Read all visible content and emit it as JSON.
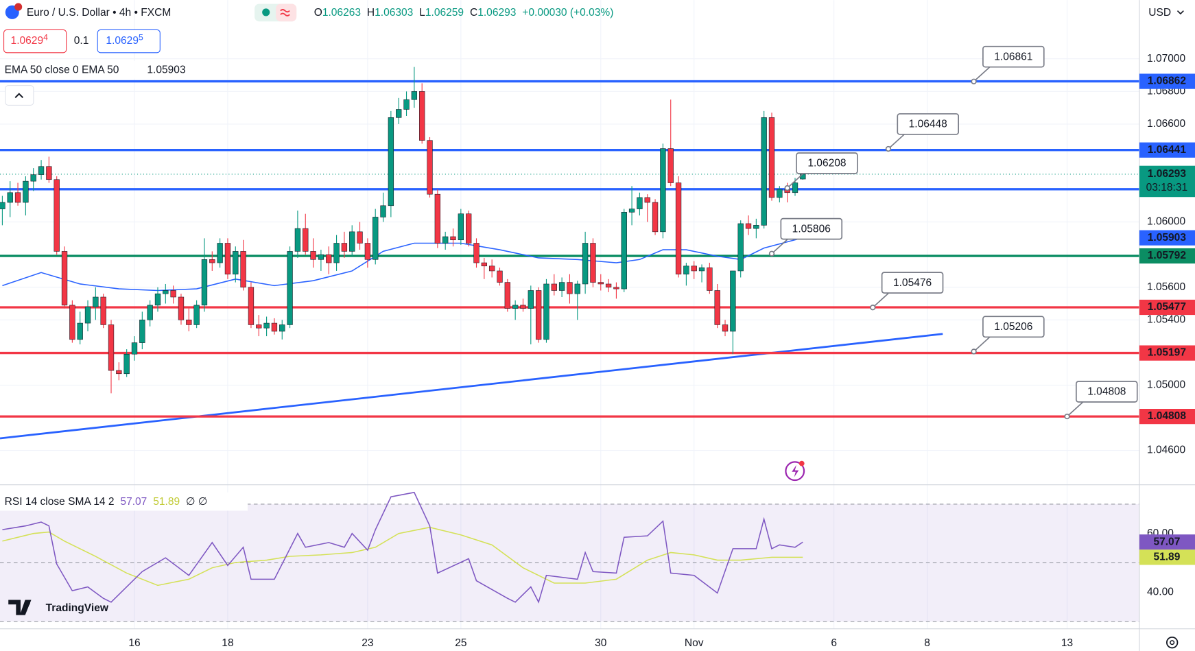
{
  "chart_data": [
    {
      "type": "candlestick",
      "title": "Euro / U.S. Dollar • 4h • FXCM",
      "ohlc_keys": [
        "O",
        "H",
        "L",
        "C"
      ],
      "change": "+0.00030 (+0.03%)",
      "quote": {
        "sell": {
          "price": "1.0629",
          "pip": "4"
        },
        "spread": "0.1",
        "buy": {
          "price": "1.0629",
          "pip": "5"
        }
      },
      "currency": "USD",
      "x": [
        0,
        1,
        2,
        3,
        4,
        5,
        6,
        7,
        8,
        9,
        10,
        11,
        12,
        13,
        14,
        15,
        16,
        17,
        18,
        19,
        20,
        21,
        22,
        23,
        24,
        25,
        26,
        27,
        28,
        29,
        30,
        31,
        32,
        33,
        34,
        35,
        36,
        37,
        38,
        39,
        40,
        41,
        42,
        43,
        44,
        45,
        46,
        47,
        48,
        49,
        50,
        51,
        52,
        53,
        54,
        55,
        56,
        57,
        58,
        59,
        60,
        61,
        62,
        63,
        64,
        65,
        66,
        67,
        68,
        69,
        70,
        71,
        72,
        73,
        74,
        75,
        76,
        77,
        78,
        79,
        80,
        81,
        82,
        83,
        84,
        85,
        86,
        87,
        88,
        89,
        90,
        91,
        92,
        93,
        94,
        95,
        96,
        97,
        98,
        99,
        100,
        101,
        102,
        103
      ],
      "ohlc": [
        [
          1.0608,
          1.0616,
          1.0598,
          1.0612
        ],
        [
          1.0612,
          1.0625,
          1.0603,
          1.0618
        ],
        [
          1.0618,
          1.0624,
          1.061,
          1.0612
        ],
        [
          1.0612,
          1.0628,
          1.0604,
          1.0625
        ],
        [
          1.0625,
          1.0633,
          1.0619,
          1.0629
        ],
        [
          1.0629,
          1.0638,
          1.0626,
          1.0634
        ],
        [
          1.0634,
          1.064,
          1.0624,
          1.0626
        ],
        [
          1.0626,
          1.0628,
          1.058,
          1.0582
        ],
        [
          1.0582,
          1.0585,
          1.0547,
          1.0549
        ],
        [
          1.0549,
          1.0552,
          1.0526,
          1.0528
        ],
        [
          1.0528,
          1.0545,
          1.0525,
          1.0538
        ],
        [
          1.0538,
          1.0552,
          1.0533,
          1.0548
        ],
        [
          1.0548,
          1.056,
          1.054,
          1.0554
        ],
        [
          1.0554,
          1.0556,
          1.0535,
          1.0537
        ],
        [
          1.0537,
          1.054,
          1.0495,
          1.0509
        ],
        [
          1.0509,
          1.0514,
          1.0503,
          1.0507
        ],
        [
          1.0507,
          1.0522,
          1.0505,
          1.0519
        ],
        [
          1.0519,
          1.053,
          1.0515,
          1.0526
        ],
        [
          1.0526,
          1.0545,
          1.0522,
          1.054
        ],
        [
          1.054,
          1.0552,
          1.0536,
          1.0549
        ],
        [
          1.0549,
          1.056,
          1.0545,
          1.0556
        ],
        [
          1.0556,
          1.0562,
          1.055,
          1.0558
        ],
        [
          1.0558,
          1.0561,
          1.055,
          1.0554
        ],
        [
          1.0554,
          1.0556,
          1.0537,
          1.054
        ],
        [
          1.054,
          1.0547,
          1.0533,
          1.0537
        ],
        [
          1.0537,
          1.0552,
          1.0535,
          1.0549
        ],
        [
          1.0549,
          1.059,
          1.0545,
          1.0577
        ],
        [
          1.0577,
          1.0582,
          1.057,
          1.0575
        ],
        [
          1.0575,
          1.059,
          1.0572,
          1.0587
        ],
        [
          1.0587,
          1.059,
          1.0565,
          1.0568
        ],
        [
          1.0568,
          1.0585,
          1.0563,
          1.0582
        ],
        [
          1.0582,
          1.0589,
          1.0558,
          1.056
        ],
        [
          1.056,
          1.0563,
          1.0535,
          1.0537
        ],
        [
          1.0537,
          1.0543,
          1.053,
          1.0535
        ],
        [
          1.0535,
          1.0542,
          1.053,
          1.0538
        ],
        [
          1.0538,
          1.0541,
          1.0531,
          1.0533
        ],
        [
          1.0533,
          1.054,
          1.0528,
          1.0537
        ],
        [
          1.0537,
          1.0585,
          1.0535,
          1.0582
        ],
        [
          1.0582,
          1.0607,
          1.0578,
          1.0596
        ],
        [
          1.0596,
          1.0605,
          1.058,
          1.0582
        ],
        [
          1.0582,
          1.059,
          1.0572,
          1.0577
        ],
        [
          1.0577,
          1.0583,
          1.057,
          1.058
        ],
        [
          1.058,
          1.0585,
          1.0568,
          1.0575
        ],
        [
          1.0575,
          1.0592,
          1.057,
          1.0587
        ],
        [
          1.0587,
          1.0594,
          1.0578,
          1.0582
        ],
        [
          1.0582,
          1.0598,
          1.0579,
          1.0594
        ],
        [
          1.0594,
          1.06,
          1.0583,
          1.0587
        ],
        [
          1.0587,
          1.059,
          1.0572,
          1.0577
        ],
        [
          1.0577,
          1.0608,
          1.0574,
          1.0603
        ],
        [
          1.0603,
          1.0618,
          1.06,
          1.061
        ],
        [
          1.061,
          1.0668,
          1.0603,
          1.0664
        ],
        [
          1.0664,
          1.0676,
          1.066,
          1.0669
        ],
        [
          1.0669,
          1.068,
          1.0665,
          1.0675
        ],
        [
          1.0675,
          1.0695,
          1.067,
          1.068
        ],
        [
          1.068,
          1.0685,
          1.0648,
          1.065
        ],
        [
          1.065,
          1.0652,
          1.0615,
          1.0617
        ],
        [
          1.0617,
          1.062,
          1.0584,
          1.0587
        ],
        [
          1.0587,
          1.0594,
          1.0583,
          1.0591
        ],
        [
          1.0591,
          1.0596,
          1.0585,
          1.0589
        ],
        [
          1.0589,
          1.0608,
          1.0586,
          1.0605
        ],
        [
          1.0605,
          1.0607,
          1.0585,
          1.0587
        ],
        [
          1.0587,
          1.059,
          1.0572,
          1.0575
        ],
        [
          1.0575,
          1.0578,
          1.0565,
          1.0573
        ],
        [
          1.0573,
          1.0577,
          1.0566,
          1.057
        ],
        [
          1.057,
          1.0572,
          1.0561,
          1.0563
        ],
        [
          1.0563,
          1.0565,
          1.0545,
          1.0547
        ],
        [
          1.0547,
          1.0552,
          1.054,
          1.0549
        ],
        [
          1.0549,
          1.0553,
          1.0545,
          1.0547
        ],
        [
          1.0547,
          1.0561,
          1.0525,
          1.0558
        ],
        [
          1.0558,
          1.056,
          1.0526,
          1.0528
        ],
        [
          1.0528,
          1.0565,
          1.0526,
          1.0562
        ],
        [
          1.0562,
          1.0568,
          1.0555,
          1.0558
        ],
        [
          1.0558,
          1.0566,
          1.0554,
          1.0563
        ],
        [
          1.0563,
          1.0568,
          1.055,
          1.0556
        ],
        [
          1.0556,
          1.0564,
          1.054,
          1.0562
        ],
        [
          1.0562,
          1.0594,
          1.0556,
          1.0587
        ],
        [
          1.0587,
          1.059,
          1.056,
          1.0563
        ],
        [
          1.0563,
          1.0568,
          1.0558,
          1.0562
        ],
        [
          1.0562,
          1.0565,
          1.0557,
          1.056
        ],
        [
          1.056,
          1.0563,
          1.0553,
          1.0559
        ],
        [
          1.0559,
          1.0608,
          1.0557,
          1.0606
        ],
        [
          1.0606,
          1.0622,
          1.0598,
          1.0608
        ],
        [
          1.0608,
          1.0618,
          1.0604,
          1.0615
        ],
        [
          1.0615,
          1.0617,
          1.06,
          1.0612
        ],
        [
          1.0612,
          1.0614,
          1.0592,
          1.0594
        ],
        [
          1.0594,
          1.0648,
          1.059,
          1.0645
        ],
        [
          1.0645,
          1.0675,
          1.0622,
          1.0624
        ],
        [
          1.0624,
          1.0628,
          1.0566,
          1.0568
        ],
        [
          1.0568,
          1.0575,
          1.0561,
          1.0573
        ],
        [
          1.0573,
          1.0576,
          1.0565,
          1.057
        ],
        [
          1.057,
          1.0574,
          1.0563,
          1.0572
        ],
        [
          1.0572,
          1.0575,
          1.0556,
          1.0558
        ],
        [
          1.0558,
          1.0562,
          1.0535,
          1.0537
        ],
        [
          1.0537,
          1.054,
          1.053,
          1.0533
        ],
        [
          1.0533,
          1.057,
          1.0519,
          1.057
        ],
        [
          1.057,
          1.0601,
          1.0566,
          1.0599
        ],
        [
          1.0599,
          1.0604,
          1.0592,
          1.0596
        ],
        [
          1.0596,
          1.0602,
          1.059,
          1.0598
        ],
        [
          1.0598,
          1.0668,
          1.0596,
          1.0664
        ],
        [
          1.0664,
          1.0667,
          1.0613,
          1.0615
        ],
        [
          1.0615,
          1.0622,
          1.0612,
          1.062
        ],
        [
          1.062,
          1.0624,
          1.0612,
          1.0618
        ],
        [
          1.0618,
          1.0627,
          1.0616,
          1.0624
        ],
        [
          1.06263,
          1.06303,
          1.06259,
          1.06293
        ]
      ],
      "up_color": "#089981",
      "down_color": "#f23645",
      "xlim": [
        -0.3,
        146.3
      ],
      "xticks": [
        {
          "value": 17,
          "label": "16"
        },
        {
          "value": 29,
          "label": "18"
        },
        {
          "value": 47,
          "label": "23"
        },
        {
          "value": 59,
          "label": "25"
        },
        {
          "value": 77,
          "label": "30"
        },
        {
          "value": 89,
          "label": "Nov"
        },
        {
          "value": 107,
          "label": "6"
        },
        {
          "value": 119,
          "label": "8"
        },
        {
          "value": 137,
          "label": "13"
        }
      ],
      "ylim": [
        1.04394,
        1.0736
      ],
      "yticks": [
        {
          "value": 1.07,
          "label": "1.07000"
        },
        {
          "value": 1.068,
          "label": "1.06800"
        },
        {
          "value": 1.066,
          "label": "1.06600"
        },
        {
          "value": 1.06,
          "label": "1.06000"
        },
        {
          "value": 1.056,
          "label": "1.05600"
        },
        {
          "value": 1.054,
          "label": "1.05400"
        },
        {
          "value": 1.05,
          "label": "1.05000"
        },
        {
          "value": 1.046,
          "label": "1.04600"
        }
      ],
      "grid": true,
      "ema": {
        "name": "EMA 50 close 0 EMA 50",
        "color": "#2962ff",
        "x": [
          0,
          5,
          10,
          15,
          20,
          25,
          30,
          35,
          40,
          45,
          49,
          53,
          55,
          59,
          64,
          69,
          74,
          79,
          82,
          85,
          88,
          92,
          95,
          98,
          103
        ],
        "values": [
          1.0561,
          1.0569,
          1.0562,
          1.0559,
          1.0558,
          1.0559,
          1.0565,
          1.0561,
          1.0564,
          1.057,
          1.0582,
          1.0587,
          1.0587,
          1.0587,
          1.0583,
          1.0578,
          1.0577,
          1.0575,
          1.0577,
          1.0583,
          1.0583,
          1.0579,
          1.0577,
          1.0584,
          1.05903
        ]
      },
      "trend_line": {
        "color": "#2962ff",
        "x": [
          -0.3,
          121
        ],
        "values": [
          1.04674,
          1.05314
        ]
      },
      "levels": [
        {
          "value": 1.06862,
          "color": "#2962ff"
        },
        {
          "value": 1.06441,
          "color": "#2962ff"
        },
        {
          "value": 1.06201,
          "color": "#2962ff"
        },
        {
          "value": 1.05792,
          "color": "#0b8d63"
        },
        {
          "value": 1.05477,
          "color": "#f23645"
        },
        {
          "value": 1.05197,
          "color": "#f23645"
        },
        {
          "value": 1.04808,
          "color": "#f23645"
        }
      ],
      "notes": [
        {
          "x": 125,
          "value": 1.06861
        },
        {
          "x": 114,
          "value": 1.06448
        },
        {
          "x": 101,
          "value": 1.06208
        },
        {
          "x": 99,
          "value": 1.05806
        },
        {
          "x": 112,
          "value": 1.05476
        },
        {
          "x": 125,
          "value": 1.05206
        },
        {
          "x": 137,
          "value": 1.04808
        }
      ],
      "countdown": "03:18:31",
      "last_color": "#089981"
    },
    {
      "type": "line",
      "title": "RSI 14 close SMA 14 2",
      "suffix": "∅ ∅",
      "ylim": [
        27.5,
        76.6
      ],
      "yticks": [
        {
          "value": 60,
          "label": "60.00"
        },
        {
          "value": 40,
          "label": "40.00"
        }
      ],
      "levels": [
        70,
        50,
        30
      ],
      "band_color": "#7e57c2",
      "series": [
        {
          "color": "#7e57c2",
          "x": [
            0,
            3,
            5,
            6,
            7,
            9,
            11,
            13,
            14,
            18,
            21,
            24,
            27,
            29,
            31,
            32,
            35,
            38,
            39,
            42,
            44,
            45,
            47,
            48,
            50,
            53,
            55,
            56,
            60,
            61,
            65,
            66,
            68,
            69,
            70,
            74,
            75,
            76,
            79,
            80,
            83,
            85,
            86,
            89,
            92,
            94,
            97,
            98,
            99,
            100,
            102,
            103
          ],
          "values": [
            61.3,
            62.6,
            63.9,
            62.6,
            49.6,
            40.5,
            41.8,
            37.9,
            36.6,
            47,
            51.7,
            45.7,
            56.9,
            49.1,
            55.3,
            44.4,
            44.4,
            60,
            55.3,
            56.9,
            55.3,
            60,
            54.3,
            61.3,
            72.5,
            74,
            62.6,
            46.5,
            51.4,
            43.9,
            37.9,
            36.6,
            41.8,
            36.6,
            45.7,
            44.4,
            53.5,
            47,
            46.5,
            58.7,
            59.2,
            64.2,
            46.5,
            45.7,
            39.7,
            54.8,
            54.8,
            64.9,
            54.8,
            56.1,
            55.3,
            57.07
          ]
        },
        {
          "color": "#d4e157",
          "x": [
            0,
            4,
            6,
            8,
            12,
            16,
            20,
            24,
            27,
            30,
            34,
            37,
            41,
            45,
            48,
            51,
            55,
            59,
            63,
            67,
            71,
            75,
            79,
            83,
            86,
            89,
            92,
            95,
            99,
            103
          ],
          "values": [
            57.4,
            60,
            60.5,
            57.4,
            52.2,
            46.5,
            42.3,
            44.4,
            48.3,
            50.1,
            50.9,
            52.2,
            52.7,
            53.5,
            55.3,
            60,
            62.1,
            59.5,
            56.1,
            48.3,
            43.1,
            43.1,
            44.4,
            50.9,
            53.5,
            52.7,
            50.9,
            50.9,
            51.9,
            51.89
          ]
        }
      ]
    }
  ],
  "ui": {
    "watermark": "TradingView"
  }
}
